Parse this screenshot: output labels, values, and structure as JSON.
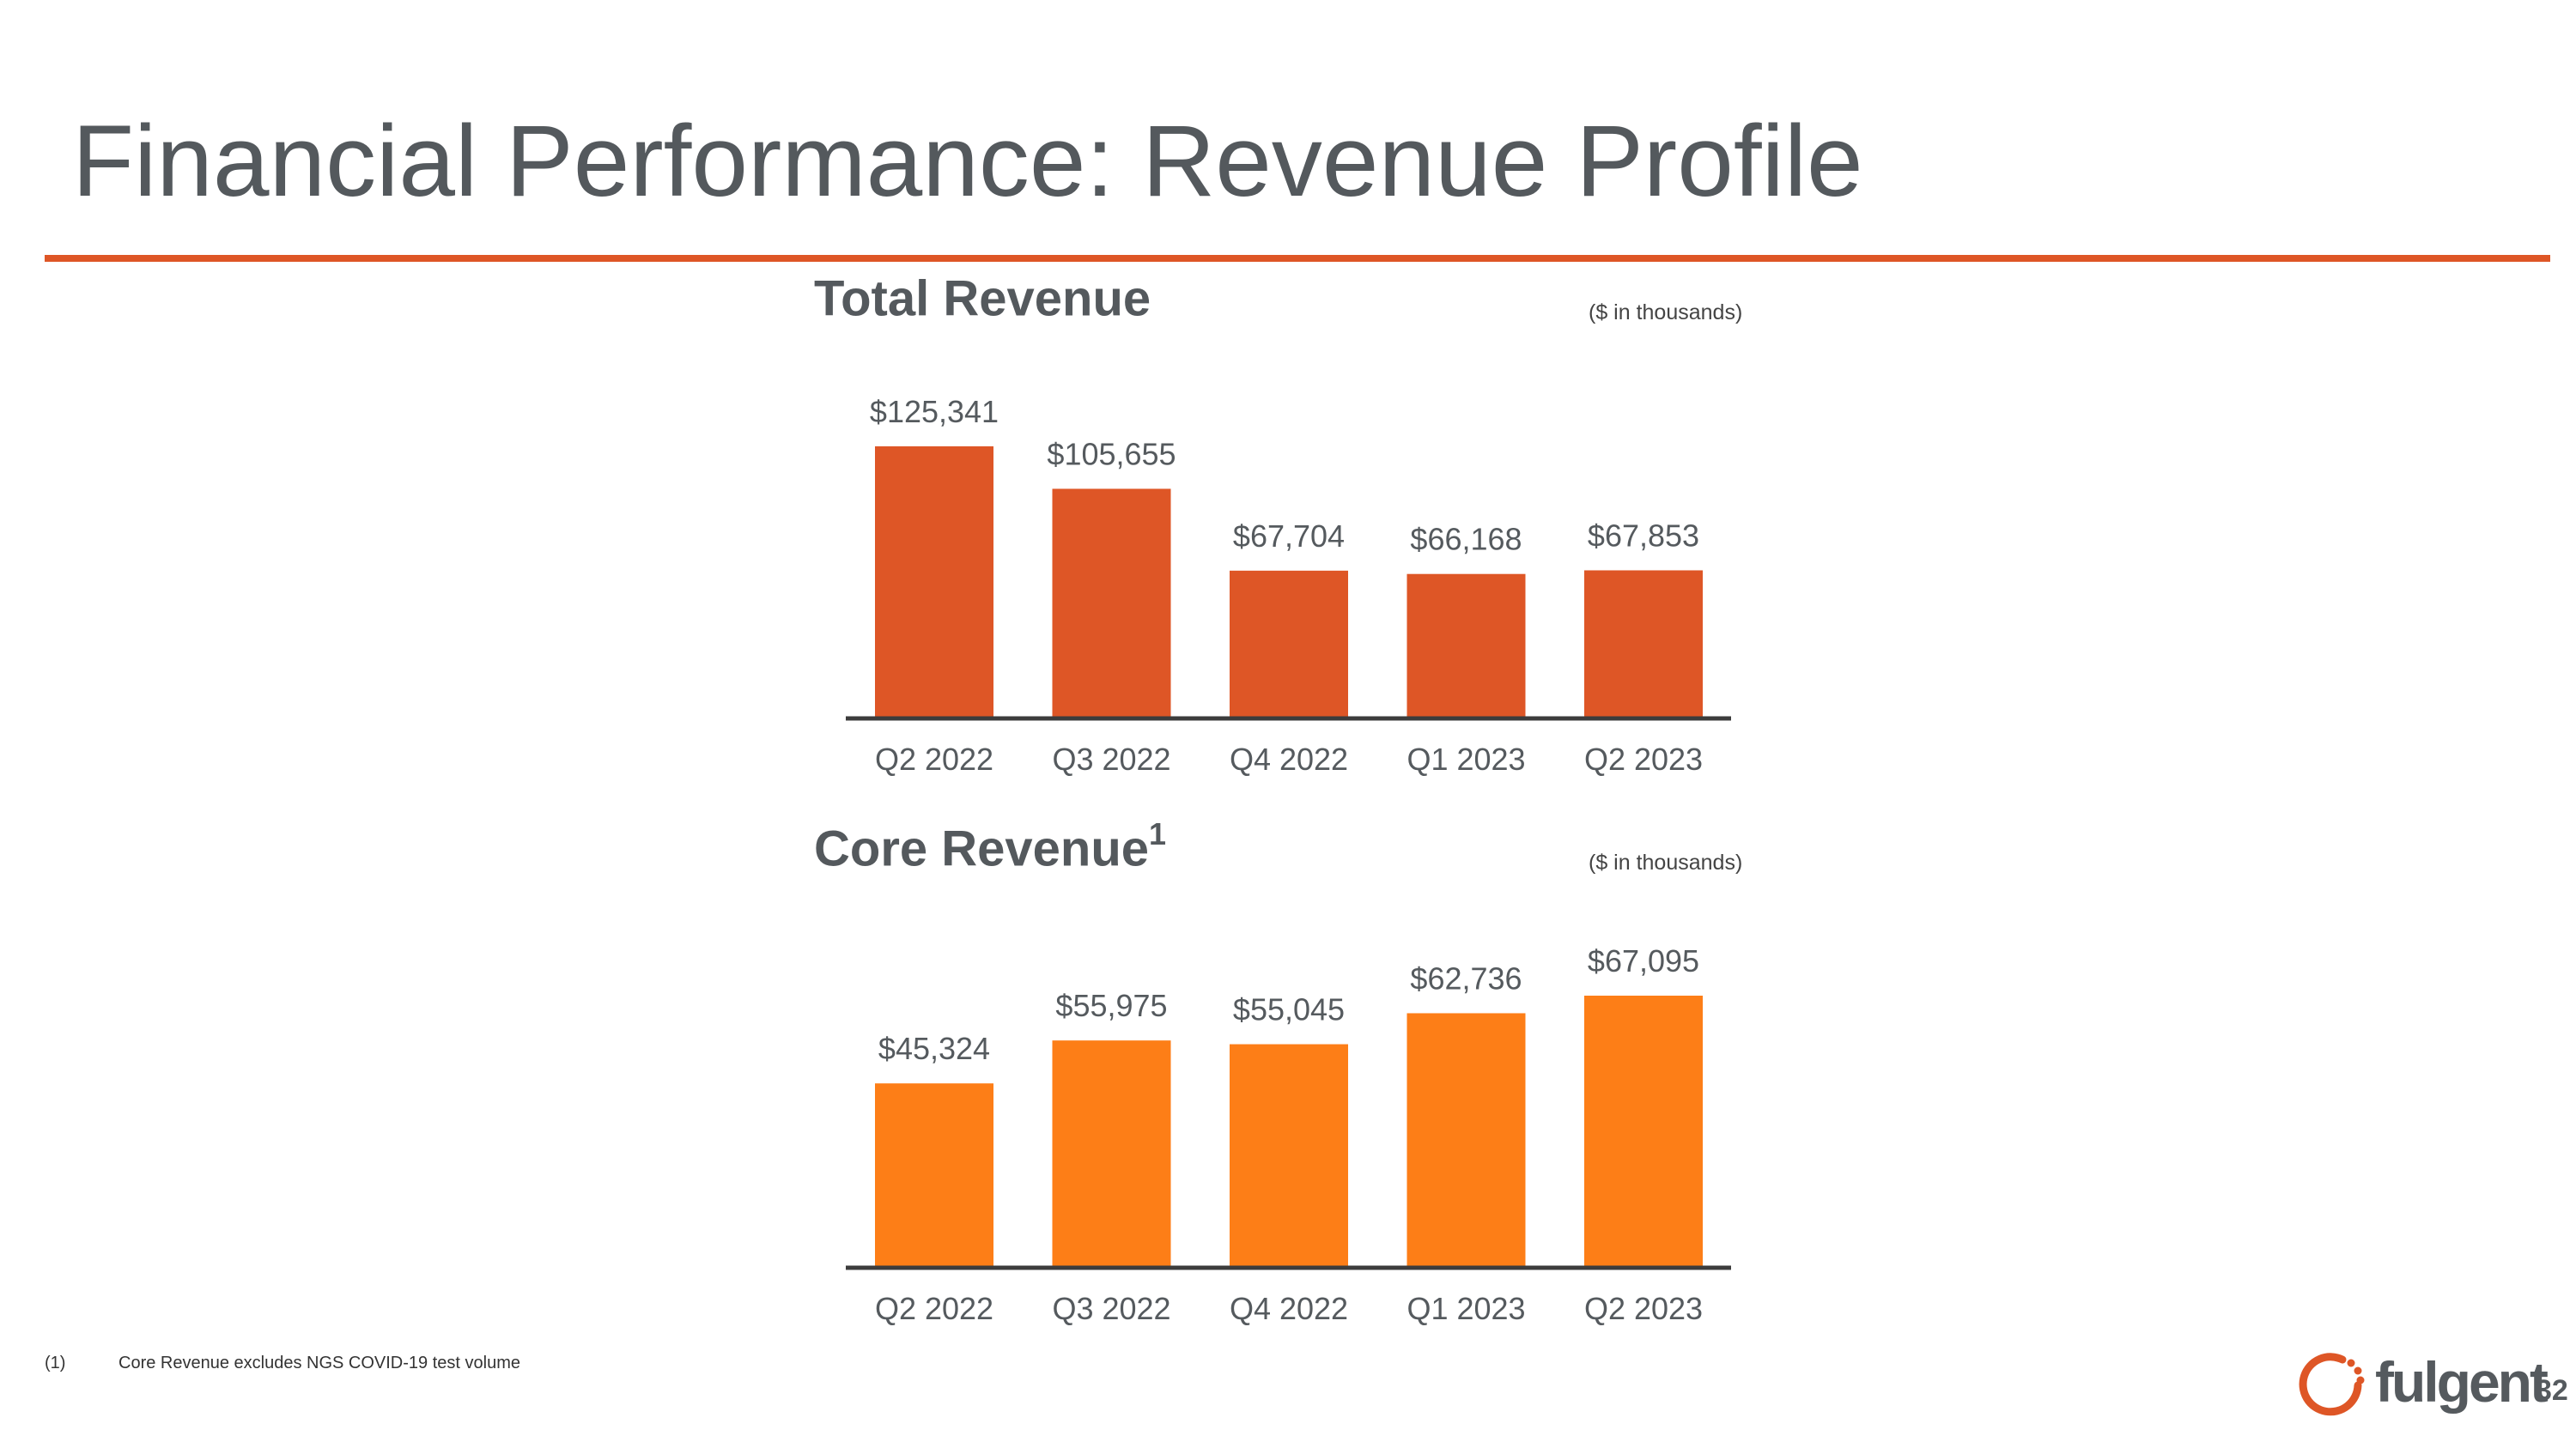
{
  "page": {
    "title": "Financial Performance: Revenue Profile",
    "page_number": "32",
    "accent_color": "#de5626"
  },
  "chart_data": [
    {
      "type": "bar",
      "title": "Total Revenue",
      "title_superscript": "",
      "units_note": "($ in thousands)",
      "categories": [
        "Q2 2022",
        "Q3 2022",
        "Q4 2022",
        "Q1 2023",
        "Q2 2023"
      ],
      "values": [
        125341,
        105655,
        67704,
        66168,
        67853
      ],
      "labels": [
        "$125,341",
        "$105,655",
        "$67,704",
        "$66,168",
        "$67,853"
      ],
      "color": "#de5626",
      "ylim": [
        0,
        125341
      ],
      "grid": false,
      "legend": "none"
    },
    {
      "type": "bar",
      "title": "Core Revenue",
      "title_superscript": "1",
      "units_note": "($ in thousands)",
      "categories": [
        "Q2 2022",
        "Q3 2022",
        "Q4 2022",
        "Q1 2023",
        "Q2 2023"
      ],
      "values": [
        45324,
        55975,
        55045,
        62736,
        67095
      ],
      "labels": [
        "$45,324",
        "$55,975",
        "$55,045",
        "$62,736",
        "$67,095"
      ],
      "color": "#fd7e17",
      "ylim": [
        0,
        67095
      ],
      "grid": false,
      "legend": "none"
    }
  ],
  "footnote": {
    "marker": "(1)",
    "text": "Core Revenue excludes NGS COVID-19 test volume"
  },
  "logo": {
    "text": "fulgent",
    "icon": "fulgent-ring-icon",
    "color": "#de5626"
  }
}
